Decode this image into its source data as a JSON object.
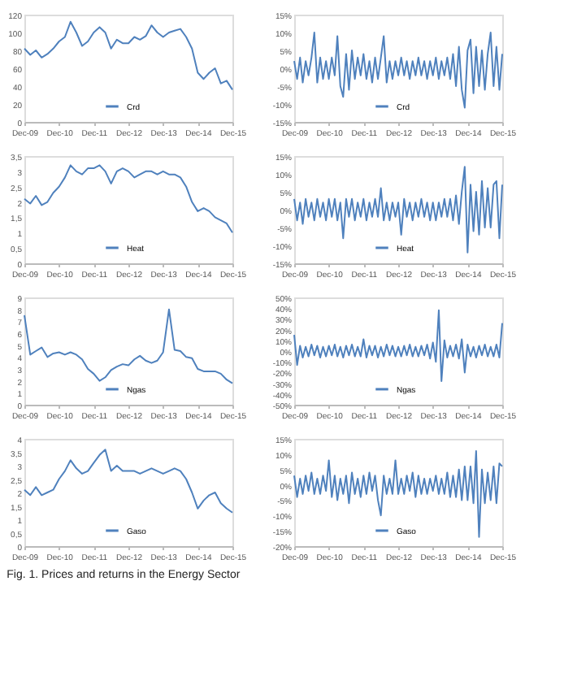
{
  "chart_data": [
    {
      "type": "line",
      "x": [
        "2009-12",
        "2010-02",
        "2010-04",
        "2010-06",
        "2010-08",
        "2010-10",
        "2010-12",
        "2011-02",
        "2011-04",
        "2011-06",
        "2011-08",
        "2011-10",
        "2011-12",
        "2012-02",
        "2012-04",
        "2012-06",
        "2012-08",
        "2012-10",
        "2012-12",
        "2013-02",
        "2013-04",
        "2013-06",
        "2013-08",
        "2013-10",
        "2013-12",
        "2014-02",
        "2014-04",
        "2014-06",
        "2014-08",
        "2014-10",
        "2014-12",
        "2015-02",
        "2015-04",
        "2015-06",
        "2015-08",
        "2015-10",
        "2015-12"
      ],
      "series": [
        {
          "name": "Crd",
          "color": "#4f81bd",
          "values": [
            82,
            75,
            80,
            72,
            76,
            82,
            90,
            95,
            112,
            100,
            85,
            90,
            100,
            106,
            100,
            82,
            92,
            88,
            88,
            95,
            92,
            96,
            108,
            100,
            95,
            100,
            102,
            104,
            95,
            82,
            55,
            48,
            55,
            60,
            43,
            46,
            36
          ]
        }
      ],
      "xlim": [
        "2009-12",
        "2015-12"
      ],
      "xticks": [
        {
          "value": "2009-12",
          "label": "Dec-09"
        },
        {
          "value": "2010-12",
          "label": "Dec-10"
        },
        {
          "value": "2011-12",
          "label": "Dec-11"
        },
        {
          "value": "2012-12",
          "label": "Dec-12"
        },
        {
          "value": "2013-12",
          "label": "Dec-13"
        },
        {
          "value": "2014-12",
          "label": "Dec-14"
        },
        {
          "value": "2015-12",
          "label": "Dec-15"
        }
      ],
      "ylim": [
        0,
        120
      ],
      "yticks": [
        0,
        20,
        40,
        60,
        80,
        100,
        120
      ],
      "legend": "bottom",
      "grid": false
    },
    {
      "type": "line",
      "x": [
        "2009-12",
        "2010-01",
        "2010-02",
        "2010-03",
        "2010-04",
        "2010-05",
        "2010-06",
        "2010-07",
        "2010-08",
        "2010-09",
        "2010-10",
        "2010-11",
        "2010-12",
        "2011-01",
        "2011-02",
        "2011-03",
        "2011-04",
        "2011-05",
        "2011-06",
        "2011-07",
        "2011-08",
        "2011-09",
        "2011-10",
        "2011-11",
        "2011-12",
        "2012-01",
        "2012-02",
        "2012-03",
        "2012-04",
        "2012-05",
        "2012-06",
        "2012-07",
        "2012-08",
        "2012-09",
        "2012-10",
        "2012-11",
        "2012-12",
        "2013-01",
        "2013-02",
        "2013-03",
        "2013-04",
        "2013-05",
        "2013-06",
        "2013-07",
        "2013-08",
        "2013-09",
        "2013-10",
        "2013-11",
        "2013-12",
        "2014-01",
        "2014-02",
        "2014-03",
        "2014-04",
        "2014-05",
        "2014-06",
        "2014-07",
        "2014-08",
        "2014-09",
        "2014-10",
        "2014-11",
        "2014-12",
        "2015-01",
        "2015-02",
        "2015-03",
        "2015-04",
        "2015-05",
        "2015-06",
        "2015-07",
        "2015-08",
        "2015-09",
        "2015-10",
        "2015-11",
        "2015-12"
      ],
      "series": [
        {
          "name": "Crd",
          "color": "#4f81bd",
          "values": [
            2,
            -3,
            3,
            -4,
            2,
            -2,
            3,
            10,
            -4,
            3,
            -3,
            2,
            -3,
            3,
            -2,
            9,
            -5,
            -8,
            4,
            -6,
            5,
            -3,
            3,
            -2,
            4,
            -3,
            2,
            -4,
            3,
            -3,
            3,
            9,
            -4,
            2,
            -3,
            2,
            -2,
            3,
            -2,
            2,
            -3,
            2,
            -2,
            3,
            -2,
            2,
            -3,
            2,
            -2,
            3,
            -3,
            2,
            -2,
            3,
            -3,
            4,
            -5,
            6,
            -6,
            -11,
            5,
            8,
            -7,
            6,
            -5,
            5,
            -6,
            4,
            10,
            -5,
            6,
            -6,
            4
          ]
        }
      ],
      "xlim": [
        "2009-12",
        "2015-12"
      ],
      "xticks": [
        {
          "value": "2009-12",
          "label": "Dec-09"
        },
        {
          "value": "2010-12",
          "label": "Dec-10"
        },
        {
          "value": "2011-12",
          "label": "Dec-11"
        },
        {
          "value": "2012-12",
          "label": "Dec-12"
        },
        {
          "value": "2013-12",
          "label": "Dec-13"
        },
        {
          "value": "2014-12",
          "label": "Dec-14"
        },
        {
          "value": "2015-12",
          "label": "Dec-15"
        }
      ],
      "ylim": [
        -15,
        15
      ],
      "yticks": [
        {
          "value": -15,
          "label": "-15%"
        },
        {
          "value": -10,
          "label": "-10%"
        },
        {
          "value": -5,
          "label": "-5%"
        },
        {
          "value": 0,
          "label": "0%"
        },
        {
          "value": 5,
          "label": "5%"
        },
        {
          "value": 10,
          "label": "10%"
        },
        {
          "value": 15,
          "label": "15%"
        }
      ],
      "legend": "bottom",
      "grid": false
    },
    {
      "type": "line",
      "x": [
        "2009-12",
        "2010-02",
        "2010-04",
        "2010-06",
        "2010-08",
        "2010-10",
        "2010-12",
        "2011-02",
        "2011-04",
        "2011-06",
        "2011-08",
        "2011-10",
        "2011-12",
        "2012-02",
        "2012-04",
        "2012-06",
        "2012-08",
        "2012-10",
        "2012-12",
        "2013-02",
        "2013-04",
        "2013-06",
        "2013-08",
        "2013-10",
        "2013-12",
        "2014-02",
        "2014-04",
        "2014-06",
        "2014-08",
        "2014-10",
        "2014-12",
        "2015-02",
        "2015-04",
        "2015-06",
        "2015-08",
        "2015-10",
        "2015-12"
      ],
      "series": [
        {
          "name": "Heat",
          "color": "#4f81bd",
          "values": [
            2.1,
            1.95,
            2.2,
            1.9,
            2.0,
            2.3,
            2.5,
            2.8,
            3.2,
            3.0,
            2.9,
            3.1,
            3.1,
            3.2,
            3.0,
            2.6,
            3.0,
            3.1,
            3.0,
            2.8,
            2.9,
            3.0,
            3.0,
            2.9,
            3.0,
            2.9,
            2.9,
            2.8,
            2.5,
            2.0,
            1.7,
            1.8,
            1.7,
            1.5,
            1.4,
            1.3,
            1.0
          ]
        }
      ],
      "xlim": [
        "2009-12",
        "2015-12"
      ],
      "xticks": [
        {
          "value": "2009-12",
          "label": "Dec-09"
        },
        {
          "value": "2010-12",
          "label": "Dec-10"
        },
        {
          "value": "2011-12",
          "label": "Dec-11"
        },
        {
          "value": "2012-12",
          "label": "Dec-12"
        },
        {
          "value": "2013-12",
          "label": "Dec-13"
        },
        {
          "value": "2014-12",
          "label": "Dec-14"
        },
        {
          "value": "2015-12",
          "label": "Dec-15"
        }
      ],
      "ylim": [
        0,
        3.5
      ],
      "yticks": [
        0,
        {
          "value": 0.5,
          "label": "0,5"
        },
        1,
        {
          "value": 1.5,
          "label": "1,5"
        },
        2,
        {
          "value": 2.5,
          "label": "2,5"
        },
        3,
        {
          "value": 3.5,
          "label": "3,5"
        }
      ],
      "legend": "bottom",
      "grid": false
    },
    {
      "type": "line",
      "x": [
        "2009-12",
        "2010-01",
        "2010-02",
        "2010-03",
        "2010-04",
        "2010-05",
        "2010-06",
        "2010-07",
        "2010-08",
        "2010-09",
        "2010-10",
        "2010-11",
        "2010-12",
        "2011-01",
        "2011-02",
        "2011-03",
        "2011-04",
        "2011-05",
        "2011-06",
        "2011-07",
        "2011-08",
        "2011-09",
        "2011-10",
        "2011-11",
        "2011-12",
        "2012-01",
        "2012-02",
        "2012-03",
        "2012-04",
        "2012-05",
        "2012-06",
        "2012-07",
        "2012-08",
        "2012-09",
        "2012-10",
        "2012-11",
        "2012-12",
        "2013-01",
        "2013-02",
        "2013-03",
        "2013-04",
        "2013-05",
        "2013-06",
        "2013-07",
        "2013-08",
        "2013-09",
        "2013-10",
        "2013-11",
        "2013-12",
        "2014-01",
        "2014-02",
        "2014-03",
        "2014-04",
        "2014-05",
        "2014-06",
        "2014-07",
        "2014-08",
        "2014-09",
        "2014-10",
        "2014-11",
        "2014-12",
        "2015-01",
        "2015-02",
        "2015-03",
        "2015-04",
        "2015-05",
        "2015-06",
        "2015-07",
        "2015-08",
        "2015-09",
        "2015-10",
        "2015-11",
        "2015-12"
      ],
      "series": [
        {
          "name": "Heat",
          "color": "#4f81bd",
          "values": [
            3,
            -3,
            2,
            -4,
            3,
            -2,
            2,
            -3,
            3,
            -2,
            2,
            -3,
            3,
            -2,
            3,
            -3,
            2,
            -8,
            3,
            -2,
            3,
            -3,
            2,
            -2,
            3,
            -3,
            2,
            -2,
            3,
            -2,
            6,
            -3,
            2,
            -3,
            2,
            -2,
            2,
            -7,
            3,
            -2,
            2,
            -3,
            2,
            -2,
            3,
            -2,
            2,
            -3,
            2,
            -3,
            2,
            -2,
            3,
            -2,
            3,
            -3,
            4,
            -4,
            5,
            12,
            -12,
            7,
            -6,
            5,
            -7,
            8,
            -5,
            6,
            -5,
            7,
            8,
            -8,
            7
          ]
        }
      ],
      "xlim": [
        "2009-12",
        "2015-12"
      ],
      "xticks": [
        {
          "value": "2009-12",
          "label": "Dec-09"
        },
        {
          "value": "2010-12",
          "label": "Dec-10"
        },
        {
          "value": "2011-12",
          "label": "Dec-11"
        },
        {
          "value": "2012-12",
          "label": "Dec-12"
        },
        {
          "value": "2013-12",
          "label": "Dec-13"
        },
        {
          "value": "2014-12",
          "label": "Dec-14"
        },
        {
          "value": "2015-12",
          "label": "Dec-15"
        }
      ],
      "ylim": [
        -15,
        15
      ],
      "yticks": [
        {
          "value": -15,
          "label": "-15%"
        },
        {
          "value": -10,
          "label": "-10%"
        },
        {
          "value": -5,
          "label": "-5%"
        },
        {
          "value": 0,
          "label": "0%"
        },
        {
          "value": 5,
          "label": "5%"
        },
        {
          "value": 10,
          "label": "10%"
        },
        {
          "value": 15,
          "label": "15%"
        }
      ],
      "legend": "bottom",
      "grid": false
    },
    {
      "type": "line",
      "x": [
        "2009-12",
        "2010-02",
        "2010-04",
        "2010-06",
        "2010-08",
        "2010-10",
        "2010-12",
        "2011-02",
        "2011-04",
        "2011-06",
        "2011-08",
        "2011-10",
        "2011-12",
        "2012-02",
        "2012-04",
        "2012-06",
        "2012-08",
        "2012-10",
        "2012-12",
        "2013-02",
        "2013-04",
        "2013-06",
        "2013-08",
        "2013-10",
        "2013-12",
        "2014-02",
        "2014-04",
        "2014-06",
        "2014-08",
        "2014-10",
        "2014-12",
        "2015-02",
        "2015-04",
        "2015-06",
        "2015-08",
        "2015-10",
        "2015-12"
      ],
      "series": [
        {
          "name": "Ngas",
          "color": "#4f81bd",
          "values": [
            7.5,
            4.2,
            4.5,
            4.8,
            4.0,
            4.3,
            4.4,
            4.2,
            4.4,
            4.2,
            3.8,
            3.0,
            2.6,
            2.0,
            2.3,
            2.9,
            3.2,
            3.4,
            3.3,
            3.8,
            4.1,
            3.7,
            3.5,
            3.7,
            4.4,
            8.0,
            4.6,
            4.5,
            4.0,
            3.9,
            3.0,
            2.8,
            2.8,
            2.8,
            2.6,
            2.1,
            1.8
          ]
        }
      ],
      "xlim": [
        "2009-12",
        "2015-12"
      ],
      "xticks": [
        {
          "value": "2009-12",
          "label": "Dec-09"
        },
        {
          "value": "2010-12",
          "label": "Dec-10"
        },
        {
          "value": "2011-12",
          "label": "Dec-11"
        },
        {
          "value": "2012-12",
          "label": "Dec-12"
        },
        {
          "value": "2013-12",
          "label": "Dec-13"
        },
        {
          "value": "2014-12",
          "label": "Dec-14"
        },
        {
          "value": "2015-12",
          "label": "Dec-15"
        }
      ],
      "ylim": [
        0,
        9
      ],
      "yticks": [
        0,
        1,
        2,
        3,
        4,
        5,
        6,
        7,
        8,
        9
      ],
      "legend": "bottom",
      "grid": false
    },
    {
      "type": "line",
      "x": [
        "2009-12",
        "2010-01",
        "2010-02",
        "2010-03",
        "2010-04",
        "2010-05",
        "2010-06",
        "2010-07",
        "2010-08",
        "2010-09",
        "2010-10",
        "2010-11",
        "2010-12",
        "2011-01",
        "2011-02",
        "2011-03",
        "2011-04",
        "2011-05",
        "2011-06",
        "2011-07",
        "2011-08",
        "2011-09",
        "2011-10",
        "2011-11",
        "2011-12",
        "2012-01",
        "2012-02",
        "2012-03",
        "2012-04",
        "2012-05",
        "2012-06",
        "2012-07",
        "2012-08",
        "2012-09",
        "2012-10",
        "2012-11",
        "2012-12",
        "2013-01",
        "2013-02",
        "2013-03",
        "2013-04",
        "2013-05",
        "2013-06",
        "2013-07",
        "2013-08",
        "2013-09",
        "2013-10",
        "2013-11",
        "2013-12",
        "2014-01",
        "2014-02",
        "2014-03",
        "2014-04",
        "2014-05",
        "2014-06",
        "2014-07",
        "2014-08",
        "2014-09",
        "2014-10",
        "2014-11",
        "2014-12",
        "2015-01",
        "2015-02",
        "2015-03",
        "2015-04",
        "2015-05",
        "2015-06",
        "2015-07",
        "2015-08",
        "2015-09",
        "2015-10",
        "2015-11",
        "2015-12"
      ],
      "series": [
        {
          "name": "Ngas",
          "color": "#4f81bd",
          "values": [
            15,
            -13,
            5,
            -6,
            4,
            -5,
            6,
            -4,
            5,
            -6,
            4,
            -5,
            5,
            -4,
            6,
            -5,
            4,
            -6,
            5,
            -4,
            6,
            -5,
            4,
            -5,
            11,
            -6,
            5,
            -4,
            5,
            -6,
            4,
            -5,
            6,
            -4,
            5,
            -5,
            4,
            -5,
            5,
            -4,
            6,
            -5,
            4,
            -5,
            5,
            -4,
            6,
            -7,
            8,
            -10,
            38,
            -28,
            10,
            -6,
            5,
            -5,
            6,
            -7,
            11,
            -20,
            6,
            -5,
            4,
            -6,
            5,
            -4,
            6,
            -5,
            4,
            -5,
            6,
            -6,
            26
          ]
        }
      ],
      "xlim": [
        "2009-12",
        "2015-12"
      ],
      "xticks": [
        {
          "value": "2009-12",
          "label": "Dec-09"
        },
        {
          "value": "2010-12",
          "label": "Dec-10"
        },
        {
          "value": "2011-12",
          "label": "Dec-11"
        },
        {
          "value": "2012-12",
          "label": "Dec-12"
        },
        {
          "value": "2013-12",
          "label": "Dec-13"
        },
        {
          "value": "2014-12",
          "label": "Dec-14"
        },
        {
          "value": "2015-12",
          "label": "Dec-15"
        }
      ],
      "ylim": [
        -50,
        50
      ],
      "yticks": [
        {
          "value": -50,
          "label": "-50%"
        },
        {
          "value": -40,
          "label": "-40%"
        },
        {
          "value": -30,
          "label": "-30%"
        },
        {
          "value": -20,
          "label": "-20%"
        },
        {
          "value": -10,
          "label": "-10%"
        },
        {
          "value": 0,
          "label": "0%"
        },
        {
          "value": 10,
          "label": "10%"
        },
        {
          "value": 20,
          "label": "20%"
        },
        {
          "value": 30,
          "label": "30%"
        },
        {
          "value": 40,
          "label": "40%"
        },
        {
          "value": 50,
          "label": "50%"
        }
      ],
      "legend": "bottom",
      "grid": false
    },
    {
      "type": "line",
      "x": [
        "2009-12",
        "2010-02",
        "2010-04",
        "2010-06",
        "2010-08",
        "2010-10",
        "2010-12",
        "2011-02",
        "2011-04",
        "2011-06",
        "2011-08",
        "2011-10",
        "2011-12",
        "2012-02",
        "2012-04",
        "2012-06",
        "2012-08",
        "2012-10",
        "2012-12",
        "2013-02",
        "2013-04",
        "2013-06",
        "2013-08",
        "2013-10",
        "2013-12",
        "2014-02",
        "2014-04",
        "2014-06",
        "2014-08",
        "2014-10",
        "2014-12",
        "2015-02",
        "2015-04",
        "2015-06",
        "2015-08",
        "2015-10",
        "2015-12"
      ],
      "series": [
        {
          "name": "Gaso",
          "color": "#4f81bd",
          "values": [
            2.1,
            1.9,
            2.2,
            1.9,
            2.0,
            2.1,
            2.5,
            2.8,
            3.2,
            2.9,
            2.7,
            2.8,
            3.1,
            3.4,
            3.6,
            2.8,
            3.0,
            2.8,
            2.8,
            2.8,
            2.7,
            2.8,
            2.9,
            2.8,
            2.7,
            2.8,
            2.9,
            2.8,
            2.5,
            2.0,
            1.4,
            1.7,
            1.9,
            2.0,
            1.6,
            1.4,
            1.25
          ]
        }
      ],
      "xlim": [
        "2009-12",
        "2015-12"
      ],
      "xticks": [
        {
          "value": "2009-12",
          "label": "Dec-09"
        },
        {
          "value": "2010-12",
          "label": "Dec-10"
        },
        {
          "value": "2011-12",
          "label": "Dec-11"
        },
        {
          "value": "2012-12",
          "label": "Dec-12"
        },
        {
          "value": "2013-12",
          "label": "Dec-13"
        },
        {
          "value": "2014-12",
          "label": "Dec-14"
        },
        {
          "value": "2015-12",
          "label": "Dec-15"
        }
      ],
      "ylim": [
        0,
        4
      ],
      "yticks": [
        0,
        {
          "value": 0.5,
          "label": "0,5"
        },
        1,
        {
          "value": 1.5,
          "label": "1,5"
        },
        2,
        {
          "value": 2.5,
          "label": "2,5"
        },
        3,
        {
          "value": 3.5,
          "label": "3,5"
        },
        4
      ],
      "legend": "bottom",
      "grid": false
    },
    {
      "type": "line",
      "x": [
        "2009-12",
        "2010-01",
        "2010-02",
        "2010-03",
        "2010-04",
        "2010-05",
        "2010-06",
        "2010-07",
        "2010-08",
        "2010-09",
        "2010-10",
        "2010-11",
        "2010-12",
        "2011-01",
        "2011-02",
        "2011-03",
        "2011-04",
        "2011-05",
        "2011-06",
        "2011-07",
        "2011-08",
        "2011-09",
        "2011-10",
        "2011-11",
        "2011-12",
        "2012-01",
        "2012-02",
        "2012-03",
        "2012-04",
        "2012-05",
        "2012-06",
        "2012-07",
        "2012-08",
        "2012-09",
        "2012-10",
        "2012-11",
        "2012-12",
        "2013-01",
        "2013-02",
        "2013-03",
        "2013-04",
        "2013-05",
        "2013-06",
        "2013-07",
        "2013-08",
        "2013-09",
        "2013-10",
        "2013-11",
        "2013-12",
        "2014-01",
        "2014-02",
        "2014-03",
        "2014-04",
        "2014-05",
        "2014-06",
        "2014-07",
        "2014-08",
        "2014-09",
        "2014-10",
        "2014-11",
        "2014-12",
        "2015-01",
        "2015-02",
        "2015-03",
        "2015-04",
        "2015-05",
        "2015-06",
        "2015-07",
        "2015-08",
        "2015-09",
        "2015-10",
        "2015-11",
        "2015-12"
      ],
      "series": [
        {
          "name": "Gaso",
          "color": "#4f81bd",
          "values": [
            3,
            -4,
            2,
            -3,
            3,
            -2,
            4,
            -3,
            2,
            -3,
            3,
            -2,
            8,
            -4,
            3,
            -5,
            2,
            -3,
            3,
            -6,
            4,
            -3,
            2,
            -4,
            3,
            -3,
            4,
            -2,
            3,
            -5,
            -10,
            3,
            -3,
            2,
            -3,
            8,
            -3,
            2,
            -3,
            3,
            -2,
            4,
            -4,
            3,
            -3,
            2,
            -3,
            2,
            -2,
            3,
            -3,
            2,
            -3,
            4,
            -4,
            3,
            -4,
            5,
            -5,
            6,
            -5,
            6,
            -6,
            11,
            -17,
            5,
            -6,
            4,
            -5,
            6,
            -6,
            7,
            6
          ]
        }
      ],
      "xlim": [
        "2009-12",
        "2015-12"
      ],
      "xticks": [
        {
          "value": "2009-12",
          "label": "Dec-09"
        },
        {
          "value": "2010-12",
          "label": "Dec-10"
        },
        {
          "value": "2011-12",
          "label": "Dec-11"
        },
        {
          "value": "2012-12",
          "label": "Dec-12"
        },
        {
          "value": "2013-12",
          "label": "Dec-13"
        },
        {
          "value": "2014-12",
          "label": "Dec-14"
        },
        {
          "value": "2015-12",
          "label": "Dec-15"
        }
      ],
      "ylim": [
        -20,
        15
      ],
      "yticks": [
        {
          "value": -20,
          "label": "-20%"
        },
        {
          "value": -15,
          "label": "-15%"
        },
        {
          "value": -10,
          "label": "-10%"
        },
        {
          "value": -5,
          "label": "-5%"
        },
        {
          "value": 0,
          "label": "0%"
        },
        {
          "value": 5,
          "label": "5%"
        },
        {
          "value": 10,
          "label": "10%"
        },
        {
          "value": 15,
          "label": "15%"
        }
      ],
      "legend": "bottom",
      "grid": false,
      "annotations": [
        "Fig. 1. Prices and returns in the Energy Sector"
      ]
    }
  ]
}
